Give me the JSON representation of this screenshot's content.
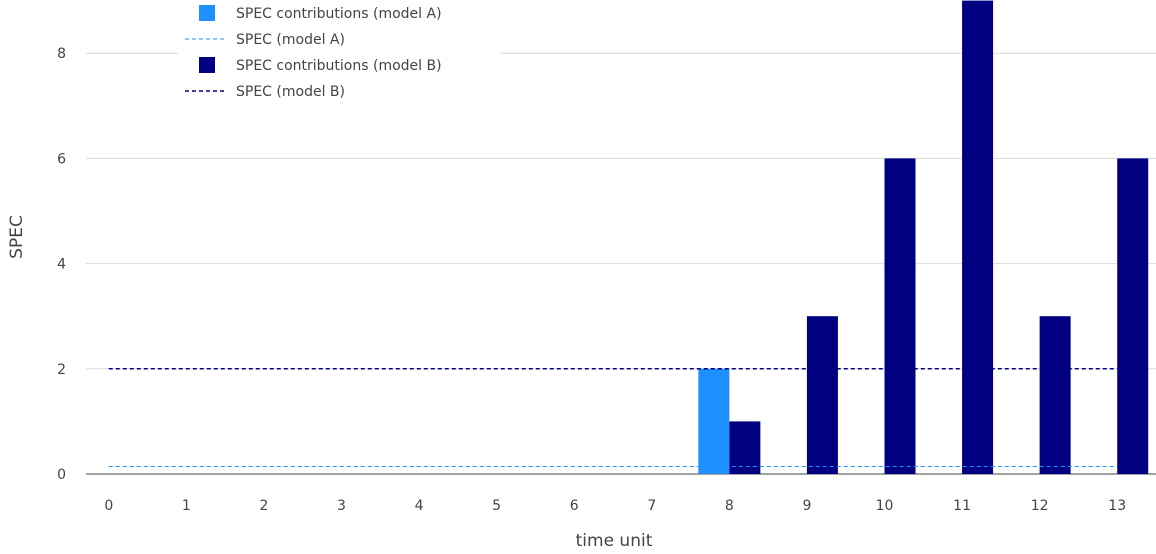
{
  "chart_data": {
    "type": "bar",
    "xlabel": "time unit",
    "ylabel": "SPEC",
    "x": [
      0,
      1,
      2,
      3,
      4,
      5,
      6,
      7,
      8,
      9,
      10,
      11,
      12,
      13
    ],
    "ylim": [
      0,
      9
    ],
    "yticks": [
      0,
      2,
      4,
      6,
      8
    ],
    "grid": true,
    "legend_position": "top-left",
    "series": [
      {
        "name": "SPEC contributions (model A)",
        "kind": "bar",
        "color": "#1e90ff",
        "values": [
          0,
          0,
          0,
          0,
          0,
          0,
          0,
          0,
          2,
          0,
          0,
          0,
          0,
          0
        ]
      },
      {
        "name": "SPEC (model A)",
        "kind": "dashed-line",
        "color": "#1e90ff",
        "value": 0.143
      },
      {
        "name": "SPEC contributions (model B)",
        "kind": "bar",
        "color": "#000080",
        "values": [
          0,
          0,
          0,
          0,
          0,
          0,
          0,
          0,
          1,
          3,
          6,
          9,
          3,
          6
        ]
      },
      {
        "name": "SPEC (model B)",
        "kind": "dashed-line",
        "color": "#000080",
        "value": 2
      }
    ]
  }
}
